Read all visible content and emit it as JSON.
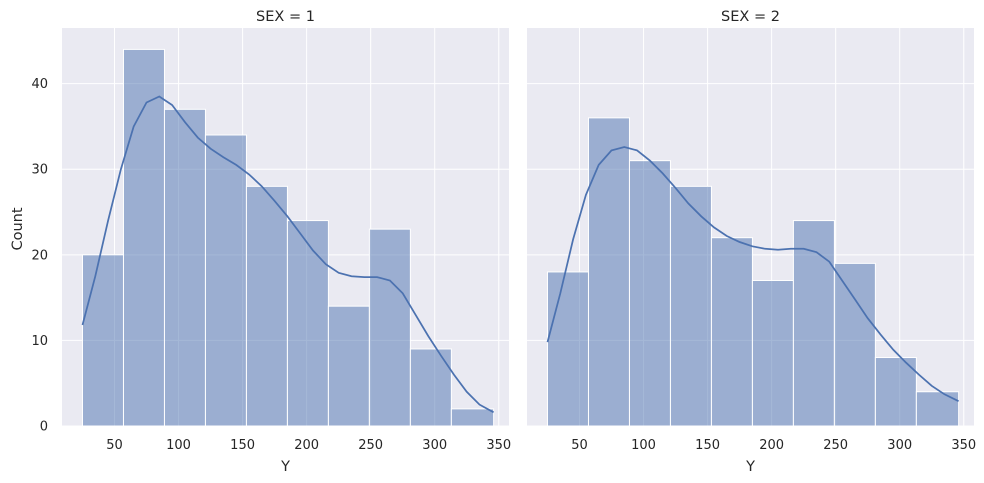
{
  "chart_data": {
    "type": "bar",
    "subtype": "histogram-with-kde",
    "xlabel": "Y",
    "ylabel": "Count",
    "shared_y": true,
    "ylim": [
      0,
      46.5
    ],
    "yticks": [
      0,
      10,
      20,
      30,
      40
    ],
    "xlim": [
      9,
      358
    ],
    "xticks": [
      50,
      100,
      150,
      200,
      250,
      300,
      350
    ],
    "bar_color": "#4c72b0",
    "background": "#eaeaf2",
    "grid": true,
    "facets": [
      {
        "title": "SEX = 1",
        "bin_edges": [
          25,
          57,
          89,
          121,
          153,
          185,
          217,
          249,
          281,
          313,
          346
        ],
        "counts": [
          20,
          44,
          37,
          34,
          28,
          24,
          14,
          23,
          9,
          2
        ],
        "kde": {
          "x": [
            25,
            35,
            45,
            55,
            65,
            75,
            85,
            95,
            105,
            115,
            125,
            135,
            145,
            155,
            165,
            175,
            185,
            195,
            205,
            215,
            225,
            235,
            245,
            255,
            265,
            275,
            285,
            295,
            305,
            315,
            325,
            335,
            346
          ],
          "y": [
            11.8,
            17.5,
            24.0,
            30.0,
            35.0,
            37.8,
            38.5,
            37.5,
            35.5,
            33.7,
            32.4,
            31.4,
            30.5,
            29.4,
            28.0,
            26.3,
            24.5,
            22.5,
            20.5,
            18.9,
            17.9,
            17.5,
            17.4,
            17.4,
            17.0,
            15.5,
            13.0,
            10.5,
            8.2,
            6.0,
            4.0,
            2.5,
            1.6
          ]
        }
      },
      {
        "title": "SEX = 2",
        "bin_edges": [
          25,
          57,
          89,
          121,
          153,
          185,
          217,
          249,
          281,
          313,
          346
        ],
        "counts": [
          18,
          36,
          31,
          28,
          22,
          17,
          24,
          19,
          8,
          4
        ],
        "kde": {
          "x": [
            25,
            35,
            45,
            55,
            65,
            75,
            85,
            95,
            105,
            115,
            125,
            135,
            145,
            155,
            165,
            175,
            185,
            195,
            205,
            215,
            225,
            235,
            245,
            255,
            265,
            275,
            285,
            295,
            305,
            315,
            325,
            335,
            346
          ],
          "y": [
            9.8,
            15.5,
            21.8,
            27.0,
            30.5,
            32.2,
            32.6,
            32.2,
            31.0,
            29.5,
            27.8,
            26.0,
            24.5,
            23.2,
            22.2,
            21.5,
            21.0,
            20.7,
            20.6,
            20.7,
            20.7,
            20.3,
            19.2,
            17.0,
            14.8,
            12.6,
            10.7,
            8.9,
            7.4,
            6.0,
            4.7,
            3.7,
            2.9
          ]
        }
      }
    ]
  }
}
